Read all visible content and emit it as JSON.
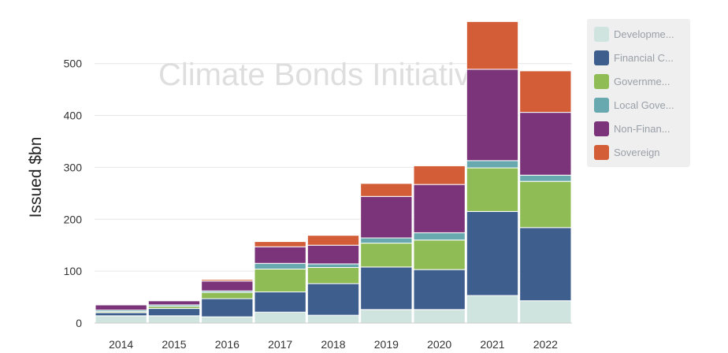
{
  "chart_data": {
    "type": "bar",
    "stacked": true,
    "watermark": "Climate Bonds Initiative",
    "ylabel": "Issued $bn",
    "xlabel": "",
    "ylim": [
      0,
      580
    ],
    "y_ticks": [
      0,
      100,
      200,
      300,
      400,
      500
    ],
    "grid": true,
    "legend_position": "right",
    "categories": [
      "2014",
      "2015",
      "2016",
      "2017",
      "2018",
      "2019",
      "2020",
      "2021",
      "2022"
    ],
    "series": [
      {
        "name": "Developme...",
        "color": "#cfe4df",
        "values": [
          14,
          14,
          12,
          21,
          15,
          26,
          26,
          53,
          43
        ]
      },
      {
        "name": "Financial C...",
        "color": "#3e5f8d",
        "values": [
          6,
          14,
          35,
          39,
          61,
          82,
          77,
          162,
          141
        ]
      },
      {
        "name": "Governme...",
        "color": "#8fbc55",
        "values": [
          2,
          4,
          12,
          44,
          31,
          46,
          57,
          84,
          89
        ]
      },
      {
        "name": "Local Gove...",
        "color": "#68a9b0",
        "values": [
          3,
          3,
          3,
          11,
          7,
          10,
          14,
          14,
          12
        ]
      },
      {
        "name": "Non-Finan...",
        "color": "#7b3379",
        "values": [
          10,
          8,
          19,
          32,
          36,
          80,
          93,
          176,
          121
        ]
      },
      {
        "name": "Sovereign",
        "color": "#d25d37",
        "values": [
          1,
          1,
          3,
          10,
          19,
          25,
          36,
          92,
          80
        ]
      }
    ]
  }
}
